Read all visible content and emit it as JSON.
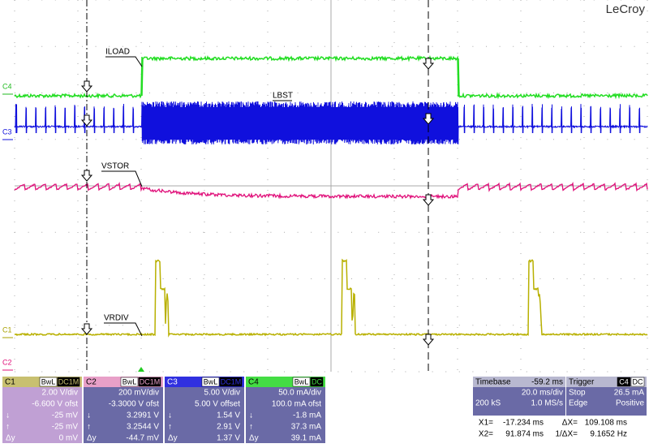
{
  "brand": "LeCroy",
  "trace_labels": [
    "ILOAD",
    "LBST",
    "VSTOR",
    "VRDIV"
  ],
  "channel_markers": [
    "C4",
    "C3",
    "C1",
    "C2"
  ],
  "channels": [
    {
      "name": "C1",
      "tags": [
        "BwL",
        "DC1M"
      ],
      "rows": [
        {
          "value": "2.00 V/div"
        },
        {
          "value": "-6.600 V ofst"
        },
        {
          "symbol": "↓",
          "value": "-25 mV"
        },
        {
          "symbol": "↑",
          "value": "-25 mV"
        },
        {
          "symbol": "Δy",
          "value": "0 mV"
        }
      ]
    },
    {
      "name": "C2",
      "tags": [
        "BwL",
        "DC1M"
      ],
      "rows": [
        {
          "value": "200 mV/div"
        },
        {
          "value": "-3.3000 V ofst"
        },
        {
          "symbol": "↓",
          "value": "3.2991 V"
        },
        {
          "symbol": "↑",
          "value": "3.2544 V"
        },
        {
          "symbol": "Δy",
          "value": "-44.7 mV"
        }
      ]
    },
    {
      "name": "C3",
      "tags": [
        "BwL",
        "DC1M"
      ],
      "rows": [
        {
          "value": "5.00 V/div"
        },
        {
          "value": "5.00 V offset"
        },
        {
          "symbol": "↓",
          "value": "1.54 V"
        },
        {
          "symbol": "↑",
          "value": "2.91 V"
        },
        {
          "symbol": "Δy",
          "value": "1.37 V"
        }
      ]
    },
    {
      "name": "C4",
      "tags": [
        "BwL",
        "DC"
      ],
      "rows": [
        {
          "value": "50.0 mA/div"
        },
        {
          "value": "100.0 mA ofst"
        },
        {
          "symbol": "↓",
          "value": "-1.8 mA"
        },
        {
          "symbol": "↑",
          "value": "37.3 mA"
        },
        {
          "symbol": "Δy",
          "value": "39.1 mA"
        }
      ]
    }
  ],
  "timebase": {
    "title": "Timebase",
    "value": "-59.2 ms",
    "rows": [
      {
        "value": "20.0 ms/div"
      },
      {
        "symbol": "200 kS",
        "value": "1.0 MS/s"
      }
    ]
  },
  "trigger": {
    "title": "Trigger",
    "tags": [
      "C4",
      "DC"
    ],
    "rows": [
      {
        "symbol": "Stop",
        "value": "26.5 mA"
      },
      {
        "symbol": "Edge",
        "value": "Positive"
      }
    ]
  },
  "cursors": [
    [
      "X1=",
      "-17.234 ms",
      "ΔX=",
      "109.108 ms"
    ],
    [
      "X2=",
      "91.874 ms",
      "1/ΔX=",
      "9.1652 Hz"
    ]
  ]
}
